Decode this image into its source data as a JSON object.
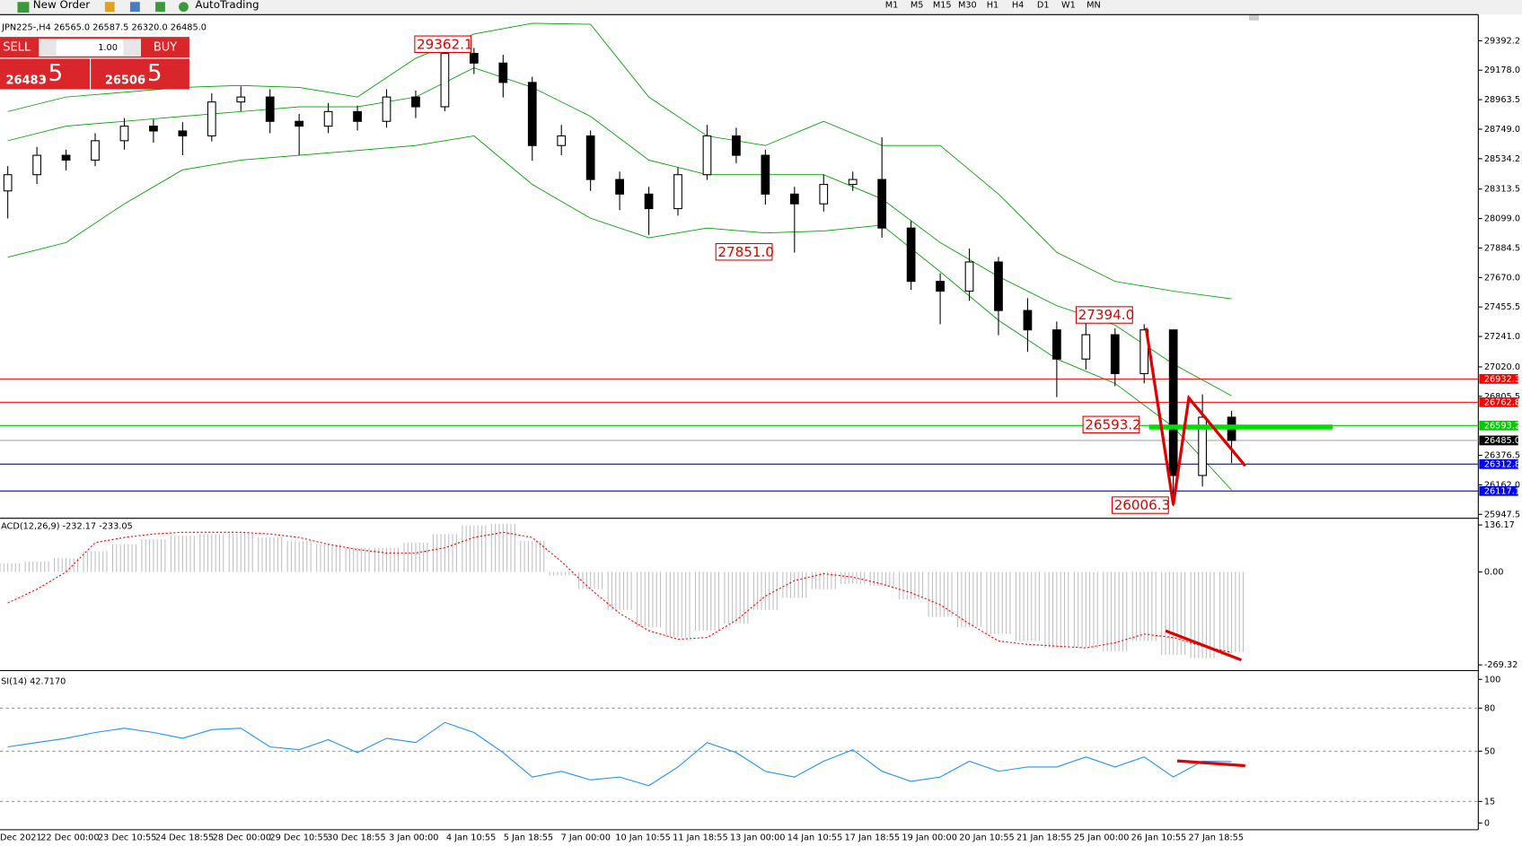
{
  "toolbar": {
    "new_order": "New Order",
    "auto_trading": "AutoTrading",
    "timeframes": [
      "M1",
      "M5",
      "M15",
      "M30",
      "H1",
      "H4",
      "D1",
      "W1",
      "MN"
    ]
  },
  "order_panel": {
    "sell": "SELL",
    "lots": "1.00",
    "buy": "BUY",
    "bid_main": "26483",
    "bid_big": ".5",
    "ask_main": "26506",
    "ask_big": ".5"
  },
  "header": {
    "symbol": "JPN225-,H4",
    "ohlc": "26565.0 26587.5 26320.0 26485.0"
  },
  "x_labels": [
    "Dec 2021",
    "22 Dec 00:00",
    "23 Dec 10:55",
    "24 Dec 18:55",
    "28 Dec 00:00",
    "29 Dec 10:55",
    "30 Dec 18:55",
    "3 Jan 00:00",
    "4 Jan 10:55",
    "5 Jan 18:55",
    "7 Jan 00:00",
    "10 Jan 10:55",
    "11 Jan 18:55",
    "13 Jan 00:00",
    "14 Jan 10:55",
    "17 Jan 18:55",
    "19 Jan 00:00",
    "20 Jan 10:55",
    "21 Jan 18:55",
    "25 Jan 00:00",
    "26 Jan 10:55",
    "27 Jan 18:55"
  ],
  "chart_data": [
    {
      "type": "candlestick",
      "open": [
        28300,
        28418,
        28559,
        28524,
        28665,
        28771,
        28736,
        28700,
        28947,
        28983,
        28806,
        28771,
        28877,
        28806,
        28983,
        28912,
        29300,
        29230,
        29089,
        28630,
        28700,
        28383,
        28277,
        28171,
        28418,
        28700,
        28559,
        28277,
        28206,
        28347,
        28383,
        28030,
        27642,
        27571,
        27783,
        27430,
        27289,
        27077,
        27254,
        26971,
        27289,
        26230,
        26654
      ],
      "high": [
        28480,
        28620,
        28600,
        28720,
        28830,
        28820,
        28800,
        29010,
        29060,
        29040,
        28860,
        28940,
        28920,
        29040,
        29030,
        29362.1,
        29340,
        29290,
        29130,
        28780,
        28740,
        28440,
        28330,
        28470,
        28780,
        28760,
        28600,
        28330,
        28420,
        28440,
        28690,
        28080,
        27700,
        27880,
        27820,
        27520,
        27350,
        27394.0,
        27300,
        27330,
        27280,
        26820,
        26700
      ],
      "low": [
        28100,
        28350,
        28450,
        28480,
        28600,
        28650,
        28560,
        28660,
        28880,
        28720,
        28560,
        28720,
        28740,
        28760,
        28830,
        28880,
        29150,
        28980,
        28520,
        28560,
        28300,
        28160,
        27980,
        28120,
        28380,
        28500,
        28200,
        27851.0,
        28150,
        28300,
        27960,
        27580,
        27330,
        27500,
        27250,
        27130,
        26800,
        27000,
        26880,
        26900,
        26006.3,
        26150,
        26320
      ],
      "close": [
        28418,
        28559,
        28524,
        28665,
        28771,
        28736,
        28700,
        28947,
        28983,
        28806,
        28771,
        28877,
        28806,
        28983,
        28912,
        29300,
        29230,
        29089,
        28630,
        28700,
        28383,
        28277,
        28171,
        28418,
        28700,
        28559,
        28277,
        28206,
        28347,
        28383,
        28030,
        27642,
        27571,
        27783,
        27430,
        27289,
        27077,
        27254,
        26971,
        27289,
        26230,
        26654,
        26485.0
      ],
      "bands": {
        "x": [
          0,
          2,
          4,
          6,
          8,
          10,
          12,
          14,
          16,
          18,
          20,
          22,
          24,
          26,
          28,
          30,
          32,
          34,
          36,
          38,
          40,
          42
        ],
        "color": "#00a000",
        "upper": [
          28877,
          28983,
          29018,
          29053,
          29067,
          29053,
          28983,
          29265,
          29441,
          29519,
          29512,
          28983,
          28700,
          28630,
          28806,
          28630,
          28630,
          28277,
          27853,
          27642,
          27571,
          27515
        ],
        "middle": [
          28665,
          28771,
          28806,
          28842,
          28877,
          28912,
          28912,
          28983,
          29195,
          29053,
          28842,
          28524,
          28418,
          28418,
          28418,
          28242,
          27924,
          27677,
          27465,
          27324,
          27041,
          26809
        ],
        "lower": [
          27818,
          27924,
          28206,
          28453,
          28524,
          28559,
          28594,
          28630,
          28700,
          28347,
          28101,
          27959,
          28030,
          27994,
          28009,
          28051,
          27712,
          27359,
          27077,
          26900,
          26583,
          26124
        ]
      },
      "levels": [
        {
          "value": 26932.3,
          "label": "26932.3",
          "color": "#ff0000"
        },
        {
          "value": 26762.8,
          "label": "26762.8",
          "color": "#ff0000"
        },
        {
          "value": 26593.2,
          "label": "26593.2",
          "color": "#00cc00"
        },
        {
          "value": 26485.0,
          "label": "26485.0",
          "color": "#000000"
        },
        {
          "value": 26312.8,
          "label": "26312.8",
          "color": "#0000ff"
        },
        {
          "value": 26117.1,
          "label": "26117.1",
          "color": "#0000ff"
        }
      ],
      "annotations": [
        "29362.1",
        "27851.0",
        "27394.0",
        "26593.2",
        "26006.3"
      ],
      "ylim": [
        25926,
        29533
      ],
      "yticks": [
        29392.2,
        {
          "value": 29178.0,
          "label": "29178.0"
        },
        28963.5,
        {
          "value": 28749.0,
          "label": "28749.0"
        },
        28534.2,
        28313.5,
        {
          "value": 28099.0,
          "label": "28099.0"
        },
        27884.5,
        {
          "value": 27670.0,
          "label": "27670.0"
        },
        27455.5,
        {
          "value": 27241.0,
          "label": "27241.0"
        },
        {
          "value": 27020.0,
          "label": "27020.0"
        },
        26805.5,
        26376.5,
        {
          "value": 26162.0,
          "label": "26162.0"
        },
        25947.5
      ]
    },
    {
      "type": "macd",
      "title": "ACD(12,26,9) -232.17 -233.05",
      "histogram": [
        25,
        30,
        40,
        60,
        80,
        95,
        105,
        110,
        112,
        100,
        90,
        80,
        70,
        70,
        85,
        110,
        135,
        140,
        90,
        -10,
        -50,
        -110,
        -160,
        -190,
        -170,
        -150,
        -110,
        -75,
        -50,
        -35,
        -40,
        -80,
        -130,
        -160,
        -180,
        -200,
        -220,
        -220,
        -230,
        -200,
        -240,
        -250,
        -232.17
      ],
      "signal": [
        -90,
        -50,
        0,
        85,
        100,
        110,
        115,
        115,
        115,
        110,
        100,
        80,
        65,
        55,
        55,
        70,
        100,
        115,
        100,
        30,
        -50,
        -120,
        -170,
        -195,
        -190,
        -140,
        -70,
        -25,
        -5,
        -15,
        -35,
        -60,
        -95,
        -150,
        -200,
        -210,
        -215,
        -220,
        -205,
        -180,
        -190,
        -215,
        -233.05
      ],
      "hist_color": "#c0c0c0",
      "signal_color": "#ff0000",
      "ylim": [
        -283,
        150
      ],
      "yticks": [
        136.17,
        {
          "value": 0,
          "label": "0.00"
        },
        -269.32
      ]
    },
    {
      "type": "rsi",
      "title": "SI(14) 42.7170",
      "values": [
        53,
        56,
        59,
        63,
        66,
        63,
        59,
        65,
        66,
        53,
        51,
        58,
        49,
        59,
        56,
        70,
        63,
        49,
        32,
        36,
        30,
        32,
        26,
        39,
        56,
        49,
        36,
        32,
        43,
        51,
        36,
        29,
        32,
        43,
        36,
        39,
        39,
        46,
        39,
        46,
        32,
        43,
        42.717
      ],
      "color": "#1e90ff",
      "ylim": [
        -4.7,
        103.4
      ],
      "yticks": [
        100,
        80,
        50,
        15,
        0
      ],
      "grid": [
        80,
        50,
        15
      ]
    }
  ]
}
